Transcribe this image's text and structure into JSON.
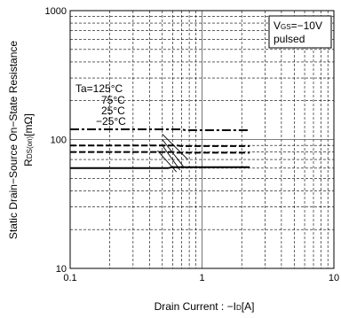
{
  "chart_data": {
    "type": "line",
    "xlabel": "Drain Current : −I",
    "xlabel_sub": "D",
    "xlabel_unit": "[A]",
    "ylabel": "Static Drain−Source On−State Resistance",
    "ylabel2": "R",
    "ylabel2_sub": "DS(on)",
    "ylabel2_unit": "[mΩ]",
    "x_scale": "log",
    "y_scale": "log",
    "xlim": [
      0.1,
      10
    ],
    "ylim": [
      10,
      1000
    ],
    "x_ticks": [
      {
        "value": 0.1,
        "label": "0.1"
      },
      {
        "value": 1,
        "label": "1"
      },
      {
        "value": 10,
        "label": "10"
      }
    ],
    "y_ticks": [
      {
        "value": 10,
        "label": "10"
      },
      {
        "value": 100,
        "label": "100"
      },
      {
        "value": 1000,
        "label": "1000"
      }
    ],
    "grid": true,
    "legend_box": {
      "line1_prefix": "V",
      "line1_sub": "GS",
      "line1_rest": "=−10V",
      "line2": "pulsed",
      "position": "top-right"
    },
    "ta_labels": [
      "Ta=125°C",
      "75°C",
      "25°C",
      "−25°C"
    ],
    "series": [
      {
        "style": "dashdot",
        "x": [
          0.1,
          0.7,
          0.75,
          2.3
        ],
        "y": [
          120,
          120,
          118,
          118
        ]
      },
      {
        "style": "dashed",
        "x": [
          0.1,
          0.65,
          0.7,
          2.3
        ],
        "y": [
          90,
          90,
          89,
          89
        ]
      },
      {
        "style": "dashed",
        "x": [
          0.1,
          0.6,
          0.65,
          2.3
        ],
        "y": [
          80,
          80,
          79,
          79
        ]
      },
      {
        "style": "solid",
        "x": [
          0.1,
          0.55,
          0.6,
          2.3
        ],
        "y": [
          60,
          60,
          61,
          61
        ]
      }
    ]
  }
}
